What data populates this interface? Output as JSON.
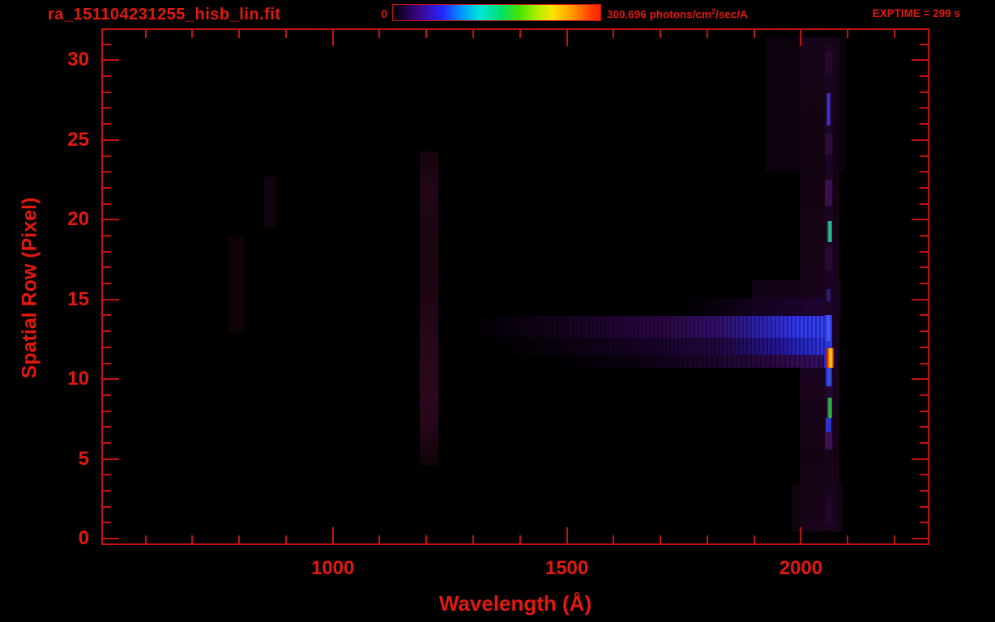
{
  "window": {
    "title": "ra_151104231255_hisb_lin.fit",
    "background": "#000000"
  },
  "header": {
    "title": "ra_151104231255_hisb_lin.fit",
    "colorbar": {
      "min_label": "0",
      "max_value": "300.696",
      "units_prefix": " photons/cm",
      "units_sup": "2",
      "units_suffix": "/sec/A"
    },
    "exptime": "EXPTIME = 299 s"
  },
  "colors": {
    "text_red": "#e2190e",
    "frame_red": "#c41212",
    "background": "#000000"
  },
  "chart_data": {
    "type": "heatmap",
    "title": "ra_151104231255_hisb_lin.fit",
    "xlabel": "Wavelength (Å)",
    "ylabel": "Spatial Row (Pixel)",
    "x_range": [
      509,
      2271
    ],
    "y_range": [
      -0.3,
      31.9
    ],
    "x_major_ticks": [
      1000,
      1500,
      2000
    ],
    "x_minor_tick_step": 100,
    "y_major_ticks": [
      0,
      5,
      10,
      15,
      20,
      25,
      30
    ],
    "y_minor_tick_step": 1,
    "grid": false,
    "exptime_seconds": 299,
    "colorbar": {
      "min": 0,
      "max": 300.696,
      "units": "photons/cm²/sec/A",
      "gradient_css": "linear-gradient(90deg,#000000 0%,#23034e 7%,#3c0a9a 14%,#2426ff 24%,#0096ff 33%,#00e8d8 42%,#00e070 52%,#48e400 61%,#a8f000 69%,#ffe400 77%,#ff9c00 86%,#ff4a00 94%,#ff1e00 100%)"
    },
    "features": [
      {
        "name": "smudge-790",
        "x": [
          778,
          812
        ],
        "rows": [
          12.9,
          19.0
        ],
        "fill": "#0d0208"
      },
      {
        "name": "smudge-860",
        "x": [
          854,
          878
        ],
        "rows": [
          19.5,
          22.7
        ],
        "fill": "#110310"
      },
      {
        "name": "lyman-alpha-band",
        "x": [
          1186,
          1226
        ],
        "rows": [
          4.6,
          24.3
        ],
        "fill": "linear-gradient(180deg,#15040f 0%,#200617 12%,#1a0512 30%,#1d0514 45%,#260719 62%,#2b081d 78%,#24061a 88%,#0e0208 100%)"
      },
      {
        "name": "haze-wide-top",
        "x": [
          1925,
          2095
        ],
        "rows": [
          23.0,
          31.5
        ],
        "fill": "#0c020e"
      },
      {
        "name": "haze-mid",
        "x": [
          1895,
          2085
        ],
        "rows": [
          13.9,
          16.2
        ],
        "fill": "#130316"
      },
      {
        "name": "haze-low",
        "x": [
          1980,
          2090
        ],
        "rows": [
          0.4,
          3.4
        ],
        "fill": "#10030e"
      },
      {
        "name": "haze-column",
        "x": [
          1997,
          2082
        ],
        "rows": [
          0.5,
          31.4
        ],
        "fill": "linear-gradient(180deg,#170419 0%,#12030f 25%,#170417 45%,#1b0520 65%,#150313 85%,#190419 100%)"
      },
      {
        "name": "band-top-faint",
        "x": [
          1740,
          2072
        ],
        "rows": [
          13.95,
          15.1
        ],
        "fill": "linear-gradient(90deg,rgba(0,0,0,0) 0%,#140220 55%,#1d0430 88%,#170327 100%)"
      },
      {
        "name": "band-row13",
        "x": [
          1295,
          2068
        ],
        "rows": [
          12.6,
          13.95
        ],
        "fill": "repeating-linear-gradient(90deg,rgba(0,0,0,0.30) 0px 2px,rgba(0,0,0,0) 2px 5px),linear-gradient(90deg,rgba(0,0,0,0) 0%,#0e0114 18%,#1e0430 38%,#2c0748 55%,#330d6e 68%,#2c22ae 80%,#3136ea 90%,#3742ff 100%)"
      },
      {
        "name": "band-row12",
        "x": [
          1330,
          2068
        ],
        "rows": [
          11.55,
          12.6
        ],
        "fill": "repeating-linear-gradient(90deg,rgba(0,0,0,0.30) 0px 2px,rgba(0,0,0,0) 2px 5px),linear-gradient(90deg,rgba(0,0,0,0) 0%,#0b0110 22%,#18032a 48%,#230646 68%,#241694 84%,#2b31dc 96%,#2a2ed4 100%)"
      },
      {
        "name": "band-row11",
        "x": [
          1455,
          2068
        ],
        "rows": [
          10.7,
          11.55
        ],
        "fill": "repeating-linear-gradient(90deg,rgba(0,0,0,0.35) 0px 2px,rgba(0,0,0,0) 2px 6px),linear-gradient(90deg,rgba(0,0,0,0) 0%,#0a0110 28%,#1c052e 58%,#2a0846 80%,#360f62 94%,#2e0b50 100%)"
      },
      {
        "name": "emission-line-base",
        "x": [
          2051,
          2069
        ],
        "rows": [
          0.6,
          31.0
        ],
        "fill": "#1c0524"
      },
      {
        "name": "line-seg-row30",
        "x": [
          2052,
          2066
        ],
        "rows": [
          29.2,
          30.6
        ],
        "fill": "#27082f"
      },
      {
        "name": "line-seg-blueviolet",
        "x": [
          2054,
          2064
        ],
        "rows": [
          25.9,
          27.95
        ],
        "fill": "linear-gradient(90deg,#251066,#4a3ad8 45%,#2c1a80)"
      },
      {
        "name": "line-seg-row25",
        "x": [
          2052,
          2066
        ],
        "rows": [
          24.1,
          25.4
        ],
        "fill": "#2e0a3c"
      },
      {
        "name": "line-seg-row21",
        "x": [
          2052,
          2066
        ],
        "rows": [
          20.9,
          22.5
        ],
        "fill": "#3a104c"
      },
      {
        "name": "line-seg-cyan",
        "x": [
          2057,
          2066
        ],
        "rows": [
          18.6,
          19.9
        ],
        "fill": "linear-gradient(90deg,#0f5040,#2fd49e 50%,#137a5c)"
      },
      {
        "name": "line-seg-row17",
        "x": [
          2052,
          2066
        ],
        "rows": [
          16.85,
          18.35
        ],
        "fill": "#270933"
      },
      {
        "name": "line-seg-row15",
        "x": [
          2054,
          2064
        ],
        "rows": [
          14.9,
          15.65
        ],
        "fill": "#2a1a70"
      },
      {
        "name": "line-seg-brightblue",
        "x": [
          2052,
          2067
        ],
        "rows": [
          12.4,
          14.0
        ],
        "fill": "linear-gradient(90deg,#2634dc,#4c5cff 55%,#2130c0)"
      },
      {
        "name": "line-seg-row12",
        "x": [
          2052,
          2067
        ],
        "rows": [
          11.95,
          12.4
        ],
        "fill": "#2d33da"
      },
      {
        "name": "line-hotspot-orange",
        "x": [
          2049,
          2070
        ],
        "rows": [
          10.7,
          11.95
        ],
        "fill": "linear-gradient(90deg,#1a32cc 0%,#1a32cc 16%,#6a1a60 20%,#c41616 28%,#e04808 40%,#ff9c00 54%,#ffd822 68%,#ffb400 78%,#e06808 88%,#a83808 100%)"
      },
      {
        "name": "line-seg-row10",
        "x": [
          2053,
          2066
        ],
        "rows": [
          9.55,
          10.7
        ],
        "fill": "linear-gradient(90deg,#1e2ab4,#3e5ae8 55%,#1926a4)"
      },
      {
        "name": "line-seg-row9",
        "x": [
          2052,
          2066
        ],
        "rows": [
          8.85,
          9.55
        ],
        "fill": "#220730"
      },
      {
        "name": "line-seg-green",
        "x": [
          2056,
          2066
        ],
        "rows": [
          7.55,
          8.85
        ],
        "fill": "linear-gradient(90deg,#156024,#3cc24e 55%,#1b7c2e)"
      },
      {
        "name": "line-seg-blue7",
        "x": [
          2053,
          2065
        ],
        "rows": [
          6.7,
          7.55
        ],
        "fill": "#2a34ca"
      },
      {
        "name": "line-seg-purple6",
        "x": [
          2052,
          2066
        ],
        "rows": [
          5.6,
          6.7
        ],
        "fill": "#3b1150"
      },
      {
        "name": "line-seg-low",
        "x": [
          2052,
          2067
        ],
        "rows": [
          3.1,
          5.6
        ],
        "fill": "#150419"
      },
      {
        "name": "line-seg-bottom",
        "x": [
          2053,
          2067
        ],
        "rows": [
          0.9,
          2.6
        ],
        "fill": "#21062a"
      }
    ]
  }
}
